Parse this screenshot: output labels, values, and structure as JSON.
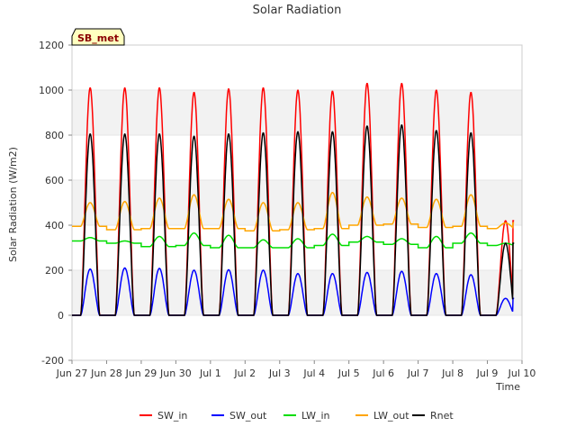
{
  "chart_data": {
    "type": "line",
    "title": "Solar Radiation",
    "xlabel": "Time",
    "ylabel": "Solar Radiation (W/m2)",
    "site_label": "SB_met",
    "ylim": [
      -200,
      1200
    ],
    "yticks": [
      -200,
      0,
      200,
      400,
      600,
      800,
      1000,
      1200
    ],
    "xlim": [
      "2023-06-27",
      "2023-07-10"
    ],
    "xtick_labels": [
      "Jun 27",
      "Jun 28",
      "Jun 29",
      "Jun 30",
      "Jul 1",
      "Jul 2",
      "Jul 3",
      "Jul 4",
      "Jul 5",
      "Jul 6",
      "Jul 7",
      "Jul 8",
      "Jul 9",
      "Jul 10"
    ],
    "grid": "alternating horizontal bands",
    "legend_position": "bottom",
    "days": [
      "Jun 27",
      "Jun 28",
      "Jun 29",
      "Jun 30",
      "Jul 1",
      "Jul 2",
      "Jul 3",
      "Jul 4",
      "Jul 5",
      "Jul 6",
      "Jul 7",
      "Jul 8",
      "Jul 9"
    ],
    "series": [
      {
        "name": "SW_in",
        "color": "#ff0000",
        "daily_peak": [
          1010,
          1010,
          1010,
          990,
          1005,
          1010,
          1000,
          995,
          1030,
          1030,
          1000,
          990,
          420
        ],
        "night_value": 0
      },
      {
        "name": "SW_out",
        "color": "#0000ff",
        "daily_peak": [
          205,
          210,
          208,
          200,
          202,
          200,
          185,
          185,
          190,
          195,
          185,
          180,
          75
        ],
        "night_value": 0
      },
      {
        "name": "LW_in",
        "color": "#00dd00",
        "daily_peak": [
          345,
          330,
          350,
          365,
          355,
          335,
          340,
          360,
          350,
          340,
          350,
          365,
          320
        ],
        "night_value": [
          330,
          320,
          305,
          310,
          300,
          300,
          300,
          310,
          325,
          315,
          300,
          320,
          310
        ]
      },
      {
        "name": "LW_out",
        "color": "#ffa500",
        "daily_peak": [
          500,
          505,
          520,
          535,
          515,
          500,
          500,
          545,
          525,
          520,
          515,
          535,
          410
        ],
        "night_value": [
          395,
          380,
          385,
          385,
          385,
          375,
          380,
          385,
          400,
          405,
          390,
          395,
          385
        ]
      },
      {
        "name": "Rnet",
        "color": "#000000",
        "daily_peak": [
          805,
          805,
          805,
          795,
          805,
          810,
          815,
          815,
          840,
          845,
          820,
          810,
          320
        ],
        "night_value": 0
      }
    ]
  }
}
